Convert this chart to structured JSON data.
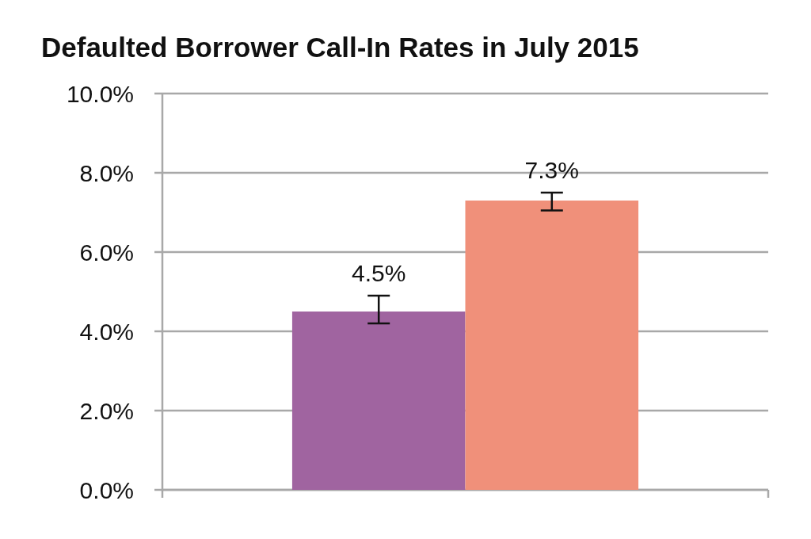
{
  "chart_data": {
    "type": "bar",
    "title": "Defaulted Borrower Call-In Rates in July 2015",
    "categories": [
      null
    ],
    "series": [
      {
        "color": "#a064a0",
        "values": [
          4.5
        ],
        "errors": [
          [
            4.2,
            4.9
          ]
        ],
        "value_labels": [
          "4.5%"
        ]
      },
      {
        "color": "#f0907a",
        "values": [
          7.3
        ],
        "errors": [
          [
            7.05,
            7.5
          ]
        ],
        "value_labels": [
          "7.3%"
        ]
      }
    ],
    "ylim": [
      0,
      10
    ],
    "yticks": [
      {
        "value": 0,
        "label": "0.0%"
      },
      {
        "value": 2,
        "label": "2.0%"
      },
      {
        "value": 4,
        "label": "4.0%"
      },
      {
        "value": 6,
        "label": "6.0%"
      },
      {
        "value": 8,
        "label": "8.0%"
      },
      {
        "value": 10,
        "label": "10.0%"
      }
    ],
    "grid": "y"
  }
}
